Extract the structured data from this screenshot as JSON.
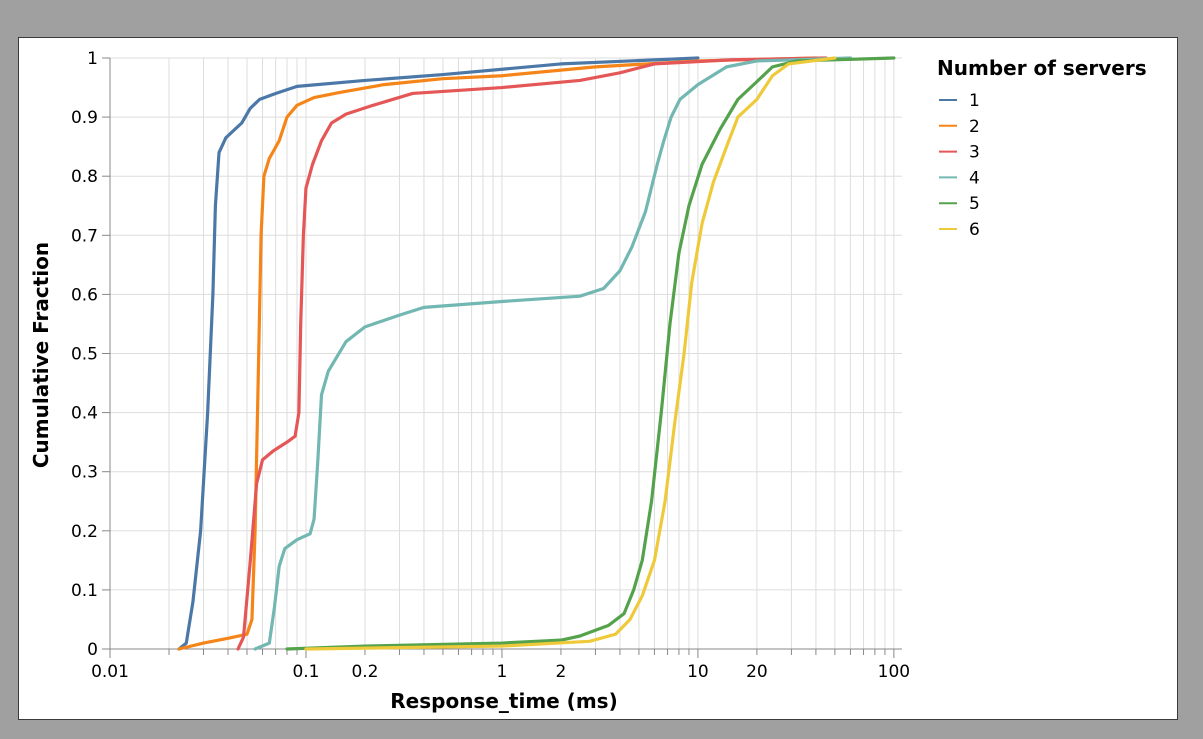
{
  "chart_data": {
    "type": "line",
    "xlabel": "Response_time (ms)",
    "ylabel": "Cumulative Fraction",
    "x_scale": "log",
    "xlim": [
      0.01,
      110
    ],
    "ylim": [
      0,
      1
    ],
    "x_ticks": [
      {
        "value": 0.01,
        "label": "0.01"
      },
      {
        "value": 0.1,
        "label": "0.1"
      },
      {
        "value": 0.2,
        "label": "0.2"
      },
      {
        "value": 1,
        "label": "1"
      },
      {
        "value": 2,
        "label": "2"
      },
      {
        "value": 10,
        "label": "10"
      },
      {
        "value": 20,
        "label": "20"
      },
      {
        "value": 100,
        "label": "100"
      }
    ],
    "y_ticks": [
      {
        "value": 0,
        "label": "0"
      },
      {
        "value": 0.1,
        "label": "0.1"
      },
      {
        "value": 0.2,
        "label": "0.2"
      },
      {
        "value": 0.3,
        "label": "0.3"
      },
      {
        "value": 0.4,
        "label": "0.4"
      },
      {
        "value": 0.5,
        "label": "0.5"
      },
      {
        "value": 0.6,
        "label": "0.6"
      },
      {
        "value": 0.7,
        "label": "0.7"
      },
      {
        "value": 0.8,
        "label": "0.8"
      },
      {
        "value": 0.9,
        "label": "0.9"
      },
      {
        "value": 1,
        "label": "1"
      }
    ],
    "grid": true,
    "legend": {
      "title": "Number of servers",
      "position": "right"
    },
    "series": [
      {
        "name": "1",
        "color": "#4c78a8",
        "points": [
          [
            0.0225,
            0
          ],
          [
            0.0245,
            0.01
          ],
          [
            0.0265,
            0.08
          ],
          [
            0.029,
            0.2
          ],
          [
            0.0315,
            0.4
          ],
          [
            0.0335,
            0.6
          ],
          [
            0.0345,
            0.75
          ],
          [
            0.036,
            0.84
          ],
          [
            0.039,
            0.865
          ],
          [
            0.042,
            0.875
          ],
          [
            0.047,
            0.89
          ],
          [
            0.052,
            0.915
          ],
          [
            0.058,
            0.93
          ],
          [
            0.07,
            0.94
          ],
          [
            0.09,
            0.952
          ],
          [
            0.2,
            0.962
          ],
          [
            0.5,
            0.972
          ],
          [
            2,
            0.99
          ],
          [
            10,
            1
          ]
        ]
      },
      {
        "name": "2",
        "color": "#f58518",
        "points": [
          [
            0.0225,
            0
          ],
          [
            0.03,
            0.01
          ],
          [
            0.04,
            0.018
          ],
          [
            0.05,
            0.025
          ],
          [
            0.053,
            0.05
          ],
          [
            0.055,
            0.2
          ],
          [
            0.057,
            0.45
          ],
          [
            0.059,
            0.7
          ],
          [
            0.061,
            0.8
          ],
          [
            0.065,
            0.83
          ],
          [
            0.073,
            0.86
          ],
          [
            0.08,
            0.9
          ],
          [
            0.09,
            0.92
          ],
          [
            0.11,
            0.933
          ],
          [
            0.15,
            0.942
          ],
          [
            0.25,
            0.955
          ],
          [
            0.5,
            0.965
          ],
          [
            1,
            0.97
          ],
          [
            3,
            0.985
          ],
          [
            10,
            0.995
          ],
          [
            40,
            1
          ]
        ]
      },
      {
        "name": "3",
        "color": "#e45756",
        "points": [
          [
            0.045,
            0
          ],
          [
            0.048,
            0.02
          ],
          [
            0.052,
            0.15
          ],
          [
            0.056,
            0.28
          ],
          [
            0.06,
            0.32
          ],
          [
            0.068,
            0.335
          ],
          [
            0.08,
            0.35
          ],
          [
            0.088,
            0.36
          ],
          [
            0.092,
            0.4
          ],
          [
            0.094,
            0.55
          ],
          [
            0.097,
            0.7
          ],
          [
            0.1,
            0.78
          ],
          [
            0.108,
            0.82
          ],
          [
            0.12,
            0.86
          ],
          [
            0.135,
            0.89
          ],
          [
            0.16,
            0.905
          ],
          [
            0.22,
            0.92
          ],
          [
            0.35,
            0.94
          ],
          [
            1,
            0.95
          ],
          [
            2.5,
            0.962
          ],
          [
            4,
            0.975
          ],
          [
            6,
            0.99
          ],
          [
            15,
            0.997
          ],
          [
            45,
            1
          ]
        ]
      },
      {
        "name": "4",
        "color": "#72b7b2",
        "points": [
          [
            0.055,
            0
          ],
          [
            0.065,
            0.01
          ],
          [
            0.069,
            0.07
          ],
          [
            0.073,
            0.14
          ],
          [
            0.078,
            0.17
          ],
          [
            0.09,
            0.185
          ],
          [
            0.105,
            0.195
          ],
          [
            0.11,
            0.22
          ],
          [
            0.115,
            0.32
          ],
          [
            0.12,
            0.43
          ],
          [
            0.13,
            0.47
          ],
          [
            0.16,
            0.52
          ],
          [
            0.2,
            0.545
          ],
          [
            0.3,
            0.565
          ],
          [
            0.4,
            0.578
          ],
          [
            1,
            0.588
          ],
          [
            2.5,
            0.597
          ],
          [
            3.3,
            0.61
          ],
          [
            4,
            0.64
          ],
          [
            4.6,
            0.68
          ],
          [
            5.4,
            0.74
          ],
          [
            6.2,
            0.82
          ],
          [
            6.7,
            0.86
          ],
          [
            7.3,
            0.9
          ],
          [
            8.1,
            0.93
          ],
          [
            10,
            0.955
          ],
          [
            14,
            0.985
          ],
          [
            20,
            0.995
          ],
          [
            60,
            1
          ]
        ]
      },
      {
        "name": "5",
        "color": "#54a24b",
        "points": [
          [
            0.08,
            0
          ],
          [
            0.2,
            0.005
          ],
          [
            1,
            0.01
          ],
          [
            2,
            0.015
          ],
          [
            2.5,
            0.022
          ],
          [
            3.5,
            0.04
          ],
          [
            4.2,
            0.06
          ],
          [
            4.7,
            0.1
          ],
          [
            5.2,
            0.15
          ],
          [
            5.8,
            0.25
          ],
          [
            6.5,
            0.4
          ],
          [
            7.2,
            0.55
          ],
          [
            8,
            0.67
          ],
          [
            9,
            0.75
          ],
          [
            10.5,
            0.82
          ],
          [
            13,
            0.88
          ],
          [
            16,
            0.93
          ],
          [
            20,
            0.96
          ],
          [
            24,
            0.985
          ],
          [
            32,
            0.995
          ],
          [
            100,
            1
          ]
        ]
      },
      {
        "name": "6",
        "color": "#eeca3b",
        "points": [
          [
            0.1,
            0
          ],
          [
            1,
            0.005
          ],
          [
            2.8,
            0.013
          ],
          [
            3.8,
            0.025
          ],
          [
            4.5,
            0.05
          ],
          [
            5.2,
            0.09
          ],
          [
            6,
            0.15
          ],
          [
            6.8,
            0.25
          ],
          [
            7.6,
            0.38
          ],
          [
            8.5,
            0.5
          ],
          [
            9.3,
            0.62
          ],
          [
            10.5,
            0.72
          ],
          [
            12,
            0.79
          ],
          [
            14,
            0.85
          ],
          [
            16,
            0.9
          ],
          [
            20,
            0.93
          ],
          [
            24,
            0.97
          ],
          [
            29,
            0.99
          ],
          [
            50,
            1
          ]
        ]
      }
    ]
  }
}
